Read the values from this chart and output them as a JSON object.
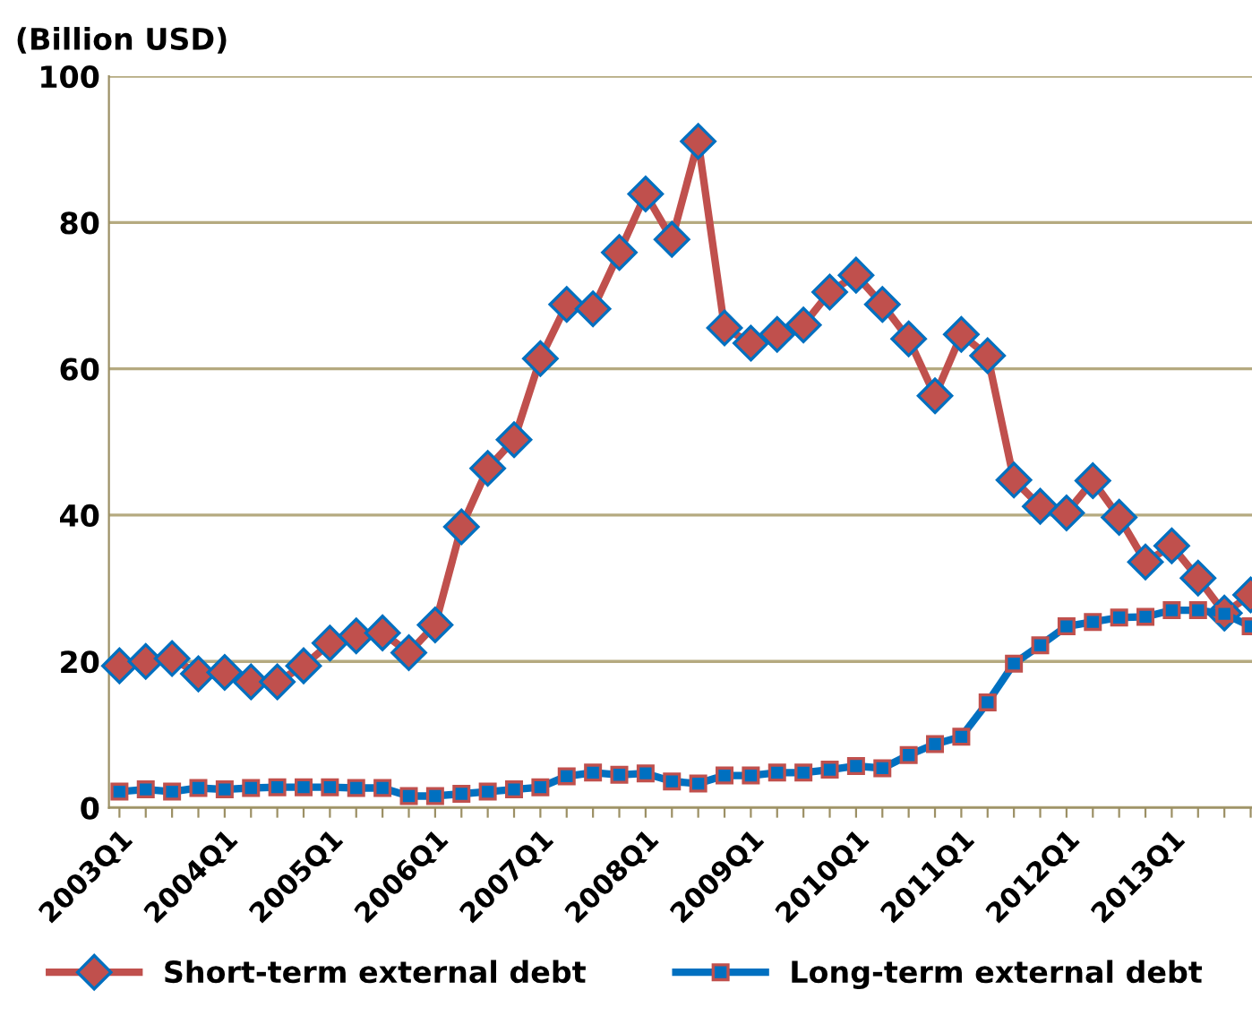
{
  "chart_data": {
    "type": "line",
    "ylabel": "(Billion USD)",
    "categories": [
      "2003Q1",
      null,
      null,
      null,
      "2004Q1",
      null,
      null,
      null,
      "2005Q1",
      null,
      null,
      null,
      "2006Q1",
      null,
      null,
      null,
      "2007Q1",
      null,
      null,
      null,
      "2008Q1",
      null,
      null,
      null,
      "2009Q1",
      null,
      null,
      null,
      "2010Q1",
      null,
      null,
      null,
      "2011Q1",
      null,
      null,
      null,
      "2012Q1",
      null,
      null,
      null,
      "2013Q1",
      null,
      null,
      null
    ],
    "series": [
      {
        "name": "Short-term external debt",
        "color": "#c0504d",
        "marker": "diamond",
        "values": [
          19.4,
          20.0,
          20.4,
          18.3,
          18.5,
          17.2,
          17.2,
          19.4,
          22.5,
          23.5,
          23.9,
          21.2,
          25.0,
          38.4,
          46.4,
          50.3,
          61.4,
          68.8,
          68.2,
          75.9,
          83.9,
          77.7,
          91.1,
          65.6,
          63.5,
          64.7,
          66.0,
          70.5,
          72.8,
          68.8,
          64.1,
          56.3,
          64.7,
          61.8,
          44.8,
          41.2,
          40.3,
          44.7,
          39.7,
          33.6,
          35.8,
          31.4,
          26.6,
          29.1
        ]
      },
      {
        "name": "Long-term external debt",
        "color": "#0070c0",
        "marker": "square",
        "values": [
          2.2,
          2.5,
          2.2,
          2.7,
          2.5,
          2.7,
          2.8,
          2.8,
          2.8,
          2.7,
          2.7,
          1.6,
          1.6,
          1.9,
          2.2,
          2.5,
          2.8,
          4.3,
          4.8,
          4.5,
          4.7,
          3.6,
          3.3,
          4.4,
          4.4,
          4.8,
          4.8,
          5.2,
          5.7,
          5.4,
          7.2,
          8.7,
          9.7,
          14.4,
          19.7,
          22.2,
          24.8,
          25.4,
          26.0,
          26.1,
          27.0,
          27.0,
          26.5,
          24.8
        ]
      }
    ],
    "ylim": [
      0,
      100
    ],
    "yticks": [
      0,
      20,
      40,
      60,
      80,
      100
    ],
    "grid": "y",
    "legend": "bottom",
    "line_style": "solid"
  }
}
